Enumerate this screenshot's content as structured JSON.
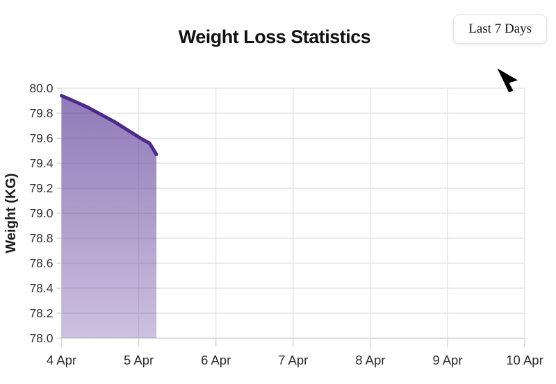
{
  "header": {
    "title": "Weight Loss Statistics",
    "range_button_label": "Last 7 Days"
  },
  "chart_data": {
    "type": "area",
    "title": "Weight Loss Statistics",
    "xlabel": "",
    "ylabel": "Weight (KG)",
    "x_tick_labels": [
      "4 Apr",
      "5 Apr",
      "6 Apr",
      "7 Apr",
      "8 Apr",
      "9 Apr",
      "10 Apr"
    ],
    "x_range_days": [
      4,
      10
    ],
    "ylim": [
      78.0,
      80.0
    ],
    "y_tick_step": 0.2,
    "y_tick_decimals": 1,
    "grid": true,
    "legend": "none",
    "series": [
      {
        "name": "Weight",
        "points": [
          {
            "day": 4.0,
            "kg": 79.94
          },
          {
            "day": 4.15,
            "kg": 79.9
          },
          {
            "day": 4.33,
            "kg": 79.85
          },
          {
            "day": 4.51,
            "kg": 79.79
          },
          {
            "day": 4.69,
            "kg": 79.73
          },
          {
            "day": 4.87,
            "kg": 79.66
          },
          {
            "day": 5.05,
            "kg": 79.59
          },
          {
            "day": 5.14,
            "kg": 79.56
          },
          {
            "day": 5.23,
            "kg": 79.47
          }
        ]
      }
    ],
    "colors": {
      "line": "#4b2a8a",
      "fill_top": "rgba(87,52,148,0.66)",
      "fill_bottom": "rgba(87,52,148,0.30)",
      "grid_line": "#e5e5e5",
      "axis_line": "#d6d6d6",
      "tick_text": "#2e2e2e"
    }
  }
}
